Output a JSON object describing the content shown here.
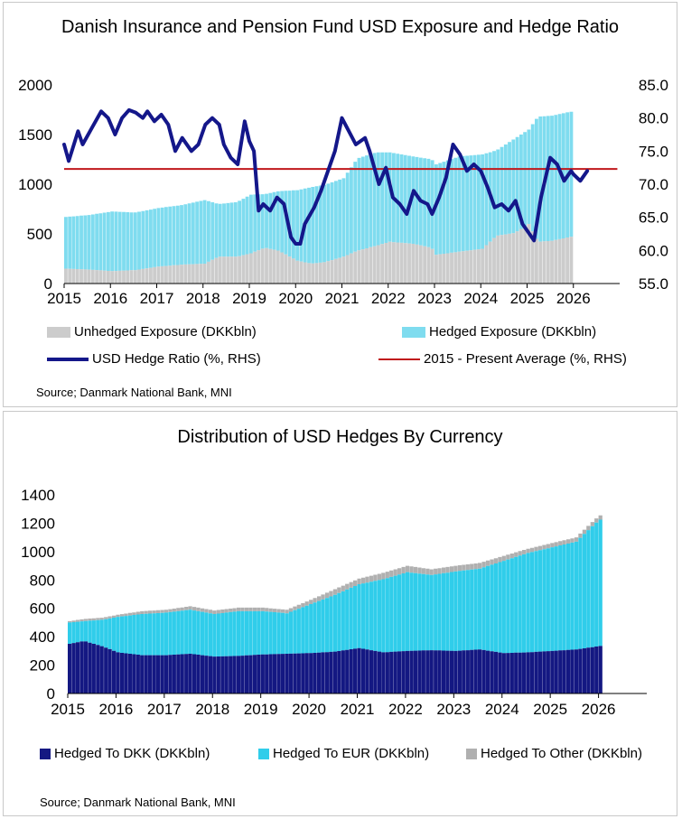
{
  "chart_data": [
    {
      "type": "area",
      "title": "Danish Insurance and Pension Fund USD Exposure and Hedge Ratio",
      "x_ticks": [
        "2015",
        "2016",
        "2017",
        "2018",
        "2019",
        "2020",
        "2021",
        "2022",
        "2023",
        "2024",
        "2025",
        "2026"
      ],
      "y_left_ticks": [
        "0",
        "500",
        "1000",
        "1500",
        "2000"
      ],
      "y_right_ticks": [
        "55.0",
        "60.0",
        "65.0",
        "70.0",
        "75.0",
        "80.0",
        "85.0"
      ],
      "ylim_left": [
        0,
        2000
      ],
      "ylim_right": [
        55,
        85
      ],
      "xlim": [
        2015,
        2027
      ],
      "series": [
        {
          "name": "Unhedged Exposure (DKKbln)",
          "kind": "stacked-area",
          "axis": "left",
          "color": "#cccccc",
          "points": [
            [
              2015.0,
              150
            ],
            [
              2015.5,
              140
            ],
            [
              2016.0,
              125
            ],
            [
              2016.5,
              135
            ],
            [
              2017.0,
              170
            ],
            [
              2017.5,
              190
            ],
            [
              2018.0,
              200
            ],
            [
              2018.3,
              270
            ],
            [
              2018.7,
              270
            ],
            [
              2019.0,
              305
            ],
            [
              2019.3,
              360
            ],
            [
              2019.6,
              330
            ],
            [
              2020.0,
              230
            ],
            [
              2020.3,
              200
            ],
            [
              2020.6,
              215
            ],
            [
              2021.0,
              270
            ],
            [
              2021.3,
              330
            ],
            [
              2021.7,
              380
            ],
            [
              2022.0,
              420
            ],
            [
              2022.5,
              400
            ],
            [
              2022.9,
              360
            ],
            [
              2023.0,
              290
            ],
            [
              2023.5,
              320
            ],
            [
              2024.0,
              350
            ],
            [
              2024.3,
              480
            ],
            [
              2024.7,
              510
            ],
            [
              2025.0,
              600
            ],
            [
              2025.2,
              420
            ],
            [
              2025.5,
              430
            ],
            [
              2025.9,
              470
            ]
          ]
        },
        {
          "name": "Hedged Exposure (DKKbln)",
          "kind": "stacked-area",
          "axis": "left",
          "color": "#7fdcef",
          "points": [
            [
              2015.0,
              520
            ],
            [
              2015.5,
              550
            ],
            [
              2016.0,
              600
            ],
            [
              2016.5,
              580
            ],
            [
              2017.0,
              590
            ],
            [
              2017.5,
              600
            ],
            [
              2018.0,
              640
            ],
            [
              2018.3,
              530
            ],
            [
              2018.7,
              550
            ],
            [
              2019.0,
              590
            ],
            [
              2019.3,
              540
            ],
            [
              2019.6,
              600
            ],
            [
              2020.0,
              710
            ],
            [
              2020.3,
              770
            ],
            [
              2020.6,
              780
            ],
            [
              2021.0,
              790
            ],
            [
              2021.3,
              930
            ],
            [
              2021.7,
              940
            ],
            [
              2022.0,
              900
            ],
            [
              2022.5,
              880
            ],
            [
              2022.9,
              890
            ],
            [
              2023.0,
              910
            ],
            [
              2023.5,
              960
            ],
            [
              2024.0,
              950
            ],
            [
              2024.3,
              860
            ],
            [
              2024.7,
              950
            ],
            [
              2025.0,
              950
            ],
            [
              2025.2,
              1260
            ],
            [
              2025.5,
              1260
            ],
            [
              2025.9,
              1260
            ]
          ]
        },
        {
          "name": "USD Hedge Ratio (%, RHS)",
          "kind": "line",
          "axis": "right",
          "color": "#14178a",
          "points": [
            [
              2015.0,
              76
            ],
            [
              2015.1,
              73.5
            ],
            [
              2015.3,
              78
            ],
            [
              2015.4,
              76
            ],
            [
              2015.6,
              78.5
            ],
            [
              2015.8,
              81
            ],
            [
              2015.95,
              80
            ],
            [
              2016.1,
              77.5
            ],
            [
              2016.25,
              80
            ],
            [
              2016.4,
              81.2
            ],
            [
              2016.55,
              80.8
            ],
            [
              2016.7,
              80
            ],
            [
              2016.8,
              81
            ],
            [
              2016.95,
              79.5
            ],
            [
              2017.1,
              80.5
            ],
            [
              2017.25,
              79
            ],
            [
              2017.4,
              75
            ],
            [
              2017.55,
              77
            ],
            [
              2017.75,
              75
            ],
            [
              2017.9,
              76
            ],
            [
              2018.05,
              79
            ],
            [
              2018.2,
              80
            ],
            [
              2018.35,
              79
            ],
            [
              2018.45,
              76
            ],
            [
              2018.6,
              74
            ],
            [
              2018.75,
              73
            ],
            [
              2018.9,
              79.5
            ],
            [
              2019.0,
              76.5
            ],
            [
              2019.1,
              75
            ],
            [
              2019.2,
              66
            ],
            [
              2019.3,
              67
            ],
            [
              2019.45,
              66
            ],
            [
              2019.6,
              68
            ],
            [
              2019.75,
              67
            ],
            [
              2019.9,
              62
            ],
            [
              2020.0,
              61
            ],
            [
              2020.1,
              61
            ],
            [
              2020.2,
              64
            ],
            [
              2020.4,
              66.5
            ],
            [
              2020.55,
              69
            ],
            [
              2020.7,
              72
            ],
            [
              2020.85,
              75
            ],
            [
              2021.0,
              80
            ],
            [
              2021.15,
              78
            ],
            [
              2021.3,
              76
            ],
            [
              2021.5,
              77
            ],
            [
              2021.6,
              75
            ],
            [
              2021.8,
              70
            ],
            [
              2021.95,
              72.5
            ],
            [
              2022.1,
              68
            ],
            [
              2022.25,
              67
            ],
            [
              2022.4,
              65.5
            ],
            [
              2022.55,
              69
            ],
            [
              2022.7,
              67.5
            ],
            [
              2022.85,
              67
            ],
            [
              2022.95,
              65.5
            ],
            [
              2023.1,
              68
            ],
            [
              2023.25,
              71
            ],
            [
              2023.4,
              76
            ],
            [
              2023.55,
              74.5
            ],
            [
              2023.7,
              72
            ],
            [
              2023.85,
              73
            ],
            [
              2024.0,
              72
            ],
            [
              2024.15,
              69.5
            ],
            [
              2024.3,
              66.5
            ],
            [
              2024.45,
              67
            ],
            [
              2024.6,
              66
            ],
            [
              2024.75,
              67.5
            ],
            [
              2024.9,
              64
            ],
            [
              2025.05,
              62.5
            ],
            [
              2025.15,
              61.5
            ],
            [
              2025.3,
              68
            ],
            [
              2025.5,
              74
            ],
            [
              2025.65,
              73
            ],
            [
              2025.8,
              70.5
            ],
            [
              2025.95,
              72
            ],
            [
              2026.0,
              71.5
            ],
            [
              2026.15,
              70.5
            ],
            [
              2026.3,
              72
            ]
          ]
        },
        {
          "name": "2015 - Present Average (%, RHS)",
          "kind": "hline",
          "axis": "right",
          "color": "#c0171b",
          "value": 72.3,
          "x_range": [
            2015.0,
            2026.95
          ]
        }
      ],
      "source": "Source; Danmark National Bank, MNI"
    },
    {
      "type": "area",
      "title": "Distribution of USD Hedges By Currency",
      "x_ticks": [
        "2015",
        "2016",
        "2017",
        "2018",
        "2019",
        "2020",
        "2021",
        "2022",
        "2023",
        "2024",
        "2025",
        "2026"
      ],
      "y_ticks": [
        "0",
        "200",
        "400",
        "600",
        "800",
        "1000",
        "1200",
        "1400"
      ],
      "ylim": [
        0,
        1400
      ],
      "xlim": [
        2015,
        2027
      ],
      "series": [
        {
          "name": "Hedged To DKK (DKKbln)",
          "kind": "stacked-area",
          "color": "#141882",
          "points": [
            [
              2015.0,
              350
            ],
            [
              2015.3,
              370
            ],
            [
              2015.7,
              330
            ],
            [
              2016.0,
              290
            ],
            [
              2016.5,
              270
            ],
            [
              2017.0,
              270
            ],
            [
              2017.5,
              280
            ],
            [
              2018.0,
              260
            ],
            [
              2018.5,
              265
            ],
            [
              2019.0,
              275
            ],
            [
              2019.5,
              280
            ],
            [
              2020.0,
              285
            ],
            [
              2020.5,
              295
            ],
            [
              2021.0,
              320
            ],
            [
              2021.5,
              290
            ],
            [
              2022.0,
              300
            ],
            [
              2022.5,
              305
            ],
            [
              2023.0,
              300
            ],
            [
              2023.5,
              310
            ],
            [
              2024.0,
              285
            ],
            [
              2024.5,
              290
            ],
            [
              2025.0,
              300
            ],
            [
              2025.5,
              310
            ],
            [
              2025.9,
              330
            ],
            [
              2026.0,
              335
            ]
          ]
        },
        {
          "name": "Hedged To EUR (DKKbln)",
          "kind": "stacked-area",
          "color": "#30cdea",
          "points": [
            [
              2015.0,
              150
            ],
            [
              2015.3,
              140
            ],
            [
              2015.7,
              190
            ],
            [
              2016.0,
              250
            ],
            [
              2016.5,
              290
            ],
            [
              2017.0,
              300
            ],
            [
              2017.5,
              310
            ],
            [
              2018.0,
              300
            ],
            [
              2018.5,
              315
            ],
            [
              2019.0,
              305
            ],
            [
              2019.5,
              285
            ],
            [
              2020.0,
              345
            ],
            [
              2020.5,
              400
            ],
            [
              2021.0,
              450
            ],
            [
              2021.5,
              515
            ],
            [
              2022.0,
              555
            ],
            [
              2022.5,
              530
            ],
            [
              2023.0,
              560
            ],
            [
              2023.5,
              570
            ],
            [
              2024.0,
              650
            ],
            [
              2024.5,
              700
            ],
            [
              2025.0,
              730
            ],
            [
              2025.5,
              760
            ],
            [
              2025.9,
              870
            ],
            [
              2026.0,
              890
            ]
          ]
        },
        {
          "name": "Hedged To Other (DKKbln)",
          "kind": "stacked-area",
          "color": "#b0b0b0",
          "points": [
            [
              2015.0,
              10
            ],
            [
              2015.3,
              15
            ],
            [
              2015.7,
              15
            ],
            [
              2016.0,
              15
            ],
            [
              2016.5,
              20
            ],
            [
              2017.0,
              20
            ],
            [
              2017.5,
              25
            ],
            [
              2018.0,
              25
            ],
            [
              2018.5,
              25
            ],
            [
              2019.0,
              25
            ],
            [
              2019.5,
              25
            ],
            [
              2020.0,
              30
            ],
            [
              2020.5,
              40
            ],
            [
              2021.0,
              40
            ],
            [
              2021.5,
              45
            ],
            [
              2022.0,
              45
            ],
            [
              2022.5,
              40
            ],
            [
              2023.0,
              40
            ],
            [
              2023.5,
              40
            ],
            [
              2024.0,
              35
            ],
            [
              2024.5,
              30
            ],
            [
              2025.0,
              30
            ],
            [
              2025.5,
              30
            ],
            [
              2025.9,
              30
            ],
            [
              2026.0,
              30
            ]
          ]
        }
      ],
      "source": "Source; Danmark National Bank, MNI"
    }
  ]
}
